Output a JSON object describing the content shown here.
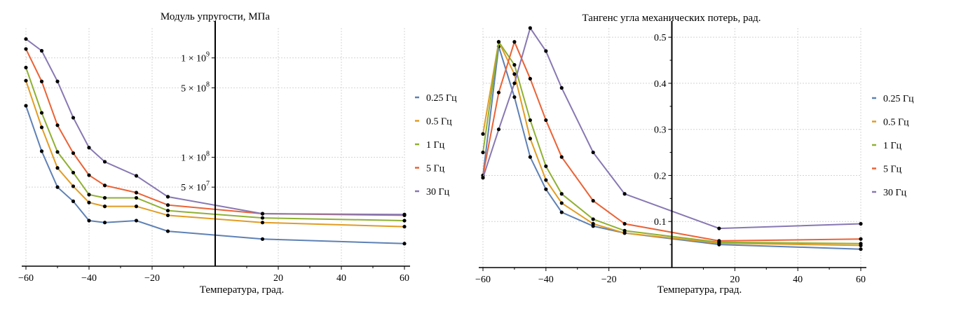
{
  "chart_data": [
    {
      "type": "line",
      "title": "Модуль упругости, МПа",
      "xlabel": "Температура, град.",
      "ylabel": "",
      "yscale": "log",
      "xlim": [
        -60,
        60
      ],
      "ylim": [
        8000000,
        2000000000
      ],
      "grid": true,
      "legend_position": "right",
      "x_ticks": [
        "−60",
        "−40",
        "−20",
        "20",
        "40",
        "60"
      ],
      "y_ticks": [
        {
          "value": 1000000000,
          "label": "1 × 10",
          "exp": "9"
        },
        {
          "value": 500000000,
          "label": "5 × 10",
          "exp": "8"
        },
        {
          "value": 100000000,
          "label": "1 × 10",
          "exp": "8"
        },
        {
          "value": 50000000,
          "label": "5 × 10",
          "exp": "7"
        }
      ],
      "x": [
        -60,
        -55,
        -50,
        -45,
        -40,
        -35,
        -25,
        -15,
        15,
        60
      ],
      "series": [
        {
          "name": "0.25 Гц",
          "color": "#5e81b5",
          "values": [
            330000000,
            115000000,
            50000000,
            36000000,
            23000000,
            22000000,
            23000000,
            18000000,
            15000000,
            13500000
          ]
        },
        {
          "name": "0.5 Гц",
          "color": "#e19c24",
          "values": [
            590000000,
            200000000,
            78000000,
            51000000,
            35000000,
            32000000,
            32000000,
            26000000,
            22000000,
            20000000
          ]
        },
        {
          "name": "1 Гц",
          "color": "#8fb032",
          "values": [
            800000000,
            280000000,
            113000000,
            70000000,
            42000000,
            39000000,
            39000000,
            29000000,
            24500000,
            23000000
          ]
        },
        {
          "name": "5 Гц",
          "color": "#eb6235",
          "values": [
            1230000000,
            580000000,
            210000000,
            110000000,
            66000000,
            52000000,
            44000000,
            33000000,
            27000000,
            26000000
          ]
        },
        {
          "name": "30 Гц",
          "color": "#8778b3",
          "values": [
            1550000000,
            1180000000,
            580000000,
            250000000,
            125000000,
            90000000,
            65000000,
            40000000,
            27000000,
            26500000
          ]
        }
      ]
    },
    {
      "type": "line",
      "title": "Тангенс угла механических потерь, рад.",
      "xlabel": "Температура, град.",
      "ylabel": "",
      "xlim": [
        -60,
        60
      ],
      "ylim": [
        0.0,
        0.52
      ],
      "grid": true,
      "legend_position": "right",
      "x_ticks": [
        "−60",
        "−40",
        "−20",
        "20",
        "40",
        "60"
      ],
      "y_ticks": [
        "0.1",
        "0.2",
        "0.3",
        "0.4",
        "0.5"
      ],
      "x": [
        -60,
        -55,
        -50,
        -45,
        -40,
        -35,
        -25,
        -15,
        15,
        60
      ],
      "series": [
        {
          "name": "0.25 Гц",
          "color": "#5e81b5",
          "values": [
            0.2,
            0.48,
            0.37,
            0.24,
            0.17,
            0.12,
            0.09,
            0.075,
            0.05,
            0.04
          ]
        },
        {
          "name": "0.5 Гц",
          "color": "#e19c24",
          "values": [
            0.29,
            0.49,
            0.42,
            0.28,
            0.19,
            0.14,
            0.095,
            0.075,
            0.053,
            0.048
          ]
        },
        {
          "name": "1 Гц",
          "color": "#8fb032",
          "values": [
            0.25,
            0.49,
            0.44,
            0.32,
            0.22,
            0.16,
            0.105,
            0.08,
            0.055,
            0.052
          ]
        },
        {
          "name": "5 Гц",
          "color": "#eb6235",
          "values": [
            0.2,
            0.38,
            0.49,
            0.41,
            0.32,
            0.24,
            0.145,
            0.095,
            0.058,
            0.062
          ]
        },
        {
          "name": "30 Гц",
          "color": "#8778b3",
          "values": [
            0.195,
            0.3,
            0.4,
            0.52,
            0.47,
            0.39,
            0.25,
            0.16,
            0.085,
            0.095
          ]
        }
      ]
    }
  ]
}
